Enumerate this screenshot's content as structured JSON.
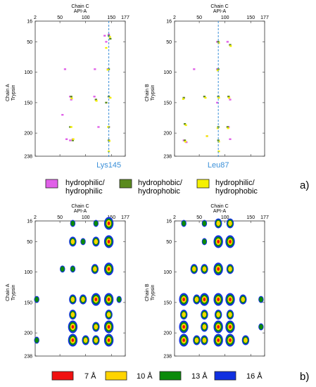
{
  "panels": [
    {
      "id": "a-left",
      "x_title": "Chain C",
      "x_subtitle": "API-A",
      "y_title": "Chain A",
      "y_subtitle": "Trypsin",
      "x_ticks": [
        2,
        50,
        100,
        150,
        177
      ],
      "y_ticks": [
        16,
        50,
        100,
        150,
        200,
        238
      ],
      "marker_label": "Lys145"
    },
    {
      "id": "a-right",
      "x_title": "Chain C",
      "x_subtitle": "API-A",
      "y_title": "Chain B",
      "y_subtitle": "Trypsin",
      "x_ticks": [
        2,
        50,
        100,
        150,
        177
      ],
      "y_ticks": [
        16,
        50,
        100,
        150,
        200,
        238
      ],
      "marker_label": "Leu87"
    },
    {
      "id": "b-left",
      "x_title": "Chain C",
      "x_subtitle": "API-A",
      "y_title": "Chain A",
      "y_subtitle": "Trypsin",
      "x_ticks": [
        2,
        50,
        100,
        150,
        177
      ],
      "y_ticks": [
        16,
        50,
        100,
        150,
        200,
        238
      ],
      "marker_label": ""
    },
    {
      "id": "b-right",
      "x_title": "Chain C",
      "x_subtitle": "API-A",
      "y_title": "Chain B",
      "y_subtitle": "Trypsin",
      "x_ticks": [
        2,
        50,
        100,
        150,
        177
      ],
      "y_ticks": [
        16,
        50,
        100,
        150,
        200,
        238
      ],
      "marker_label": ""
    }
  ],
  "legend_a": [
    {
      "line1": "hydrophilic/",
      "line2": "hydrophilic",
      "color": "#e060e8"
    },
    {
      "line1": "hydrophobic/",
      "line2": "hydrophobic",
      "color": "#5a8a1e"
    },
    {
      "line1": "hydrophilic/",
      "line2": "hydrophobic",
      "color": "#f5f000"
    }
  ],
  "legend_b": [
    {
      "label": "7 Å",
      "color": "#f01010"
    },
    {
      "label": "10 Å",
      "color": "#ffd400"
    },
    {
      "label": "13 Å",
      "color": "#0a8a0a"
    },
    {
      "label": "16 Å",
      "color": "#1030e0"
    }
  ],
  "labels": {
    "a": "a)",
    "b": "b)"
  },
  "chart_data": [
    {
      "type": "scatter",
      "title": "",
      "xlabel": "Chain C API-A",
      "ylabel": "Chain A Trypsin",
      "xlim": [
        2,
        177
      ],
      "ylim": [
        16,
        238
      ],
      "y_inverted": true,
      "marker_x": 145,
      "marker_label": "Lys145",
      "series": [
        {
          "name": "hydrophilic/hydrophilic",
          "points": [
            [
              75,
              210
            ],
            [
              70,
              212
            ],
            [
              63,
              210
            ],
            [
              117,
              140
            ],
            [
              120,
              145
            ],
            [
              140,
              50
            ],
            [
              137,
              40
            ],
            [
              145,
              38
            ],
            [
              118,
              95
            ],
            [
              60,
              95
            ],
            [
              55,
              170
            ],
            [
              70,
              140
            ],
            [
              72,
              145
            ],
            [
              125,
              190
            ],
            [
              145,
              190
            ],
            [
              145,
              212
            ],
            [
              145,
              140
            ],
            [
              143,
              95
            ]
          ]
        },
        {
          "name": "hydrophobic/hydrophobic",
          "points": [
            [
              145,
              40
            ],
            [
              145,
              140
            ],
            [
              145,
              190
            ],
            [
              145,
              212
            ],
            [
              140,
              150
            ],
            [
              72,
              140
            ],
            [
              75,
              212
            ],
            [
              70,
              190
            ],
            [
              120,
              145
            ],
            [
              145,
              95
            ],
            [
              148,
              45
            ]
          ]
        },
        {
          "name": "hydrophilic/hydrophobic",
          "points": [
            [
              147,
              42
            ],
            [
              144,
              190
            ],
            [
              146,
              213
            ],
            [
              148,
              142
            ],
            [
              76,
              210
            ],
            [
              73,
              143
            ],
            [
              72,
              190
            ],
            [
              143,
              96
            ],
            [
              140,
              60
            ],
            [
              121,
              147
            ],
            [
              145,
              230
            ]
          ]
        }
      ]
    },
    {
      "type": "scatter",
      "title": "",
      "xlabel": "Chain C API-A",
      "ylabel": "Chain B Trypsin",
      "xlim": [
        2,
        177
      ],
      "ylim": [
        16,
        238
      ],
      "y_inverted": true,
      "marker_x": 87,
      "marker_label": "Leu87",
      "series": [
        {
          "name": "hydrophilic/hydrophilic",
          "points": [
            [
              105,
              50
            ],
            [
              110,
              55
            ],
            [
              40,
              95
            ],
            [
              20,
              142
            ],
            [
              60,
              140
            ],
            [
              107,
              140
            ],
            [
              110,
              145
            ],
            [
              85,
              150
            ],
            [
              20,
              212
            ],
            [
              25,
              215
            ],
            [
              65,
              205
            ],
            [
              107,
              190
            ],
            [
              110,
              210
            ],
            [
              85,
              50
            ],
            [
              85,
              95
            ],
            [
              87,
              140
            ]
          ]
        },
        {
          "name": "hydrophobic/hydrophobic",
          "points": [
            [
              87,
              50
            ],
            [
              87,
              95
            ],
            [
              87,
              140
            ],
            [
              87,
              190
            ],
            [
              87,
              212
            ],
            [
              20,
              142
            ],
            [
              107,
              140
            ],
            [
              60,
              140
            ],
            [
              22,
              185
            ],
            [
              22,
              212
            ],
            [
              105,
              190
            ],
            [
              110,
              55
            ]
          ]
        },
        {
          "name": "hydrophilic/hydrophobic",
          "points": [
            [
              88,
              52
            ],
            [
              86,
              97
            ],
            [
              88,
              142
            ],
            [
              86,
              192
            ],
            [
              88,
              214
            ],
            [
              19,
              144
            ],
            [
              108,
              142
            ],
            [
              62,
              142
            ],
            [
              24,
              187
            ],
            [
              23,
              214
            ],
            [
              106,
              192
            ],
            [
              111,
              57
            ],
            [
              65,
              205
            ],
            [
              88,
              230
            ]
          ]
        }
      ]
    },
    {
      "type": "heatmap",
      "title": "",
      "xlabel": "Chain C API-A",
      "ylabel": "Chain A Trypsin",
      "xlim": [
        2,
        177
      ],
      "ylim": [
        16,
        238
      ],
      "y_inverted": true,
      "levels": [
        "7 Å",
        "10 Å",
        "13 Å",
        "16 Å"
      ],
      "blobs": [
        {
          "x": 75,
          "y": 20,
          "s": 1
        },
        {
          "x": 120,
          "y": 20,
          "s": 1
        },
        {
          "x": 145,
          "y": 20,
          "s": 3
        },
        {
          "x": 75,
          "y": 50,
          "s": 2
        },
        {
          "x": 95,
          "y": 50,
          "s": 1
        },
        {
          "x": 120,
          "y": 50,
          "s": 2
        },
        {
          "x": 145,
          "y": 50,
          "s": 3
        },
        {
          "x": 55,
          "y": 95,
          "s": 1
        },
        {
          "x": 75,
          "y": 95,
          "s": 1
        },
        {
          "x": 118,
          "y": 95,
          "s": 2
        },
        {
          "x": 145,
          "y": 95,
          "s": 3
        },
        {
          "x": 5,
          "y": 145,
          "s": 1
        },
        {
          "x": 75,
          "y": 145,
          "s": 2
        },
        {
          "x": 95,
          "y": 145,
          "s": 2
        },
        {
          "x": 120,
          "y": 145,
          "s": 3
        },
        {
          "x": 145,
          "y": 145,
          "s": 3
        },
        {
          "x": 165,
          "y": 145,
          "s": 1
        },
        {
          "x": 75,
          "y": 170,
          "s": 2
        },
        {
          "x": 145,
          "y": 170,
          "s": 2
        },
        {
          "x": 75,
          "y": 190,
          "s": 3
        },
        {
          "x": 120,
          "y": 190,
          "s": 2
        },
        {
          "x": 145,
          "y": 190,
          "s": 3
        },
        {
          "x": 5,
          "y": 212,
          "s": 1
        },
        {
          "x": 75,
          "y": 212,
          "s": 3
        },
        {
          "x": 100,
          "y": 212,
          "s": 2
        },
        {
          "x": 120,
          "y": 212,
          "s": 2
        },
        {
          "x": 145,
          "y": 212,
          "s": 3
        }
      ]
    },
    {
      "type": "heatmap",
      "title": "",
      "xlabel": "Chain C API-A",
      "ylabel": "Chain B Trypsin",
      "xlim": [
        2,
        177
      ],
      "ylim": [
        16,
        238
      ],
      "y_inverted": true,
      "levels": [
        "7 Å",
        "10 Å",
        "13 Å",
        "16 Å"
      ],
      "blobs": [
        {
          "x": 20,
          "y": 20,
          "s": 1
        },
        {
          "x": 60,
          "y": 20,
          "s": 1
        },
        {
          "x": 87,
          "y": 20,
          "s": 2
        },
        {
          "x": 110,
          "y": 20,
          "s": 2
        },
        {
          "x": 60,
          "y": 50,
          "s": 1
        },
        {
          "x": 87,
          "y": 50,
          "s": 3
        },
        {
          "x": 110,
          "y": 50,
          "s": 3
        },
        {
          "x": 40,
          "y": 95,
          "s": 2
        },
        {
          "x": 60,
          "y": 95,
          "s": 2
        },
        {
          "x": 87,
          "y": 95,
          "s": 3
        },
        {
          "x": 110,
          "y": 95,
          "s": 2
        },
        {
          "x": 20,
          "y": 145,
          "s": 3
        },
        {
          "x": 45,
          "y": 145,
          "s": 2
        },
        {
          "x": 60,
          "y": 145,
          "s": 3
        },
        {
          "x": 87,
          "y": 145,
          "s": 3
        },
        {
          "x": 110,
          "y": 145,
          "s": 3
        },
        {
          "x": 135,
          "y": 145,
          "s": 2
        },
        {
          "x": 170,
          "y": 145,
          "s": 1
        },
        {
          "x": 20,
          "y": 170,
          "s": 2
        },
        {
          "x": 60,
          "y": 170,
          "s": 2
        },
        {
          "x": 87,
          "y": 170,
          "s": 2
        },
        {
          "x": 110,
          "y": 170,
          "s": 2
        },
        {
          "x": 20,
          "y": 190,
          "s": 3
        },
        {
          "x": 60,
          "y": 190,
          "s": 2
        },
        {
          "x": 87,
          "y": 190,
          "s": 3
        },
        {
          "x": 110,
          "y": 190,
          "s": 3
        },
        {
          "x": 170,
          "y": 190,
          "s": 1
        },
        {
          "x": 20,
          "y": 212,
          "s": 3
        },
        {
          "x": 45,
          "y": 212,
          "s": 2
        },
        {
          "x": 60,
          "y": 212,
          "s": 2
        },
        {
          "x": 87,
          "y": 212,
          "s": 3
        },
        {
          "x": 110,
          "y": 212,
          "s": 3
        },
        {
          "x": 140,
          "y": 212,
          "s": 2
        }
      ]
    }
  ]
}
